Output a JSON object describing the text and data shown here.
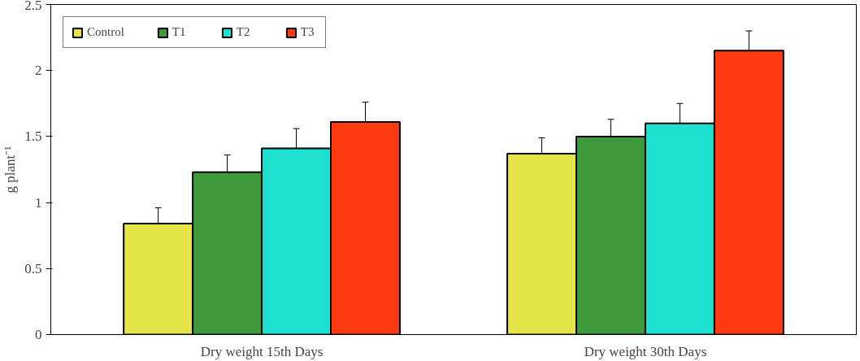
{
  "chart_data": {
    "type": "bar",
    "ylabel": "g plant⁻¹",
    "categories": [
      "Dry weight 15th Days",
      "Dry weight 30th Days"
    ],
    "series": [
      {
        "name": "Control",
        "color": "#e5e54a",
        "values": [
          0.84,
          1.37
        ],
        "errors": [
          0.12,
          0.12
        ]
      },
      {
        "name": "T1",
        "color": "#3c9a3c",
        "values": [
          1.23,
          1.5
        ],
        "errors": [
          0.13,
          0.13
        ]
      },
      {
        "name": "T2",
        "color": "#1ee0d0",
        "values": [
          1.41,
          1.6
        ],
        "errors": [
          0.15,
          0.15
        ]
      },
      {
        "name": "T3",
        "color": "#ff3a10",
        "values": [
          1.61,
          2.15
        ],
        "errors": [
          0.15,
          0.15
        ]
      }
    ],
    "ylim": [
      0,
      2.5
    ],
    "yticks": [
      0,
      0.5,
      1,
      1.5,
      2,
      2.5
    ],
    "grid": false,
    "legend": "top left"
  }
}
